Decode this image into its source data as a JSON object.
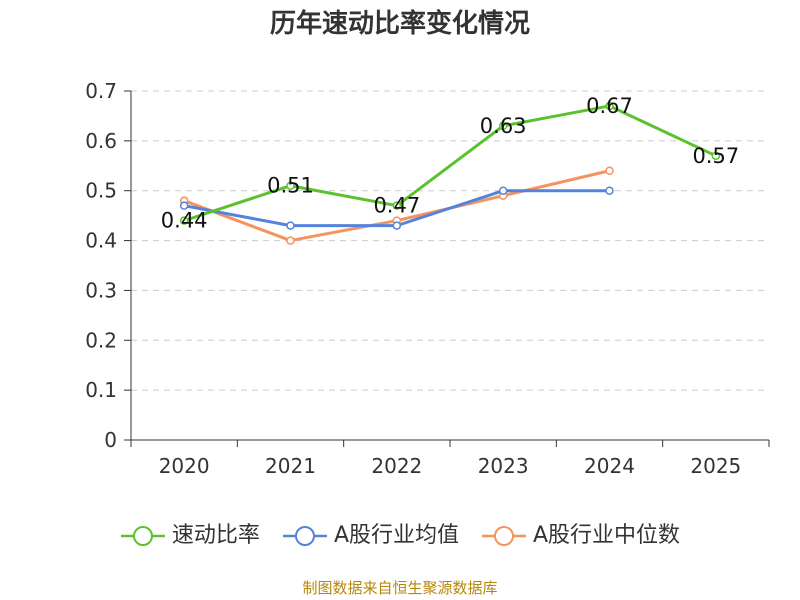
{
  "title": "历年速动比率变化情况",
  "source": "制图数据来自恒生聚源数据库",
  "chart_data": {
    "type": "line",
    "title": "历年速动比率变化情况",
    "xlabel": "",
    "ylabel": "",
    "categories": [
      "2020",
      "2021",
      "2022",
      "2023",
      "2024",
      "2025"
    ],
    "ylim": [
      0,
      0.7
    ],
    "yticks": [
      0,
      0.1,
      0.2,
      0.3,
      0.4,
      0.5,
      0.6,
      0.7
    ],
    "ytick_labels": [
      "0",
      "0.1",
      "0.2",
      "0.3",
      "0.4",
      "0.5",
      "0.6",
      "0.7"
    ],
    "grid": true,
    "legend_position": "bottom",
    "series": [
      {
        "name": "速动比率",
        "color": "#5cc22b",
        "values": [
          0.44,
          0.51,
          0.47,
          0.63,
          0.67,
          0.57
        ],
        "data_labels": [
          "0.44",
          "0.51",
          "0.47",
          "0.63",
          "0.67",
          "0.57"
        ]
      },
      {
        "name": "A股行业均值",
        "color": "#5582dd",
        "values": [
          0.47,
          0.43,
          0.43,
          0.5,
          0.5,
          null
        ]
      },
      {
        "name": "A股行业中位数",
        "color": "#f5935c",
        "values": [
          0.48,
          0.4,
          0.44,
          0.49,
          0.54,
          null
        ]
      }
    ]
  }
}
